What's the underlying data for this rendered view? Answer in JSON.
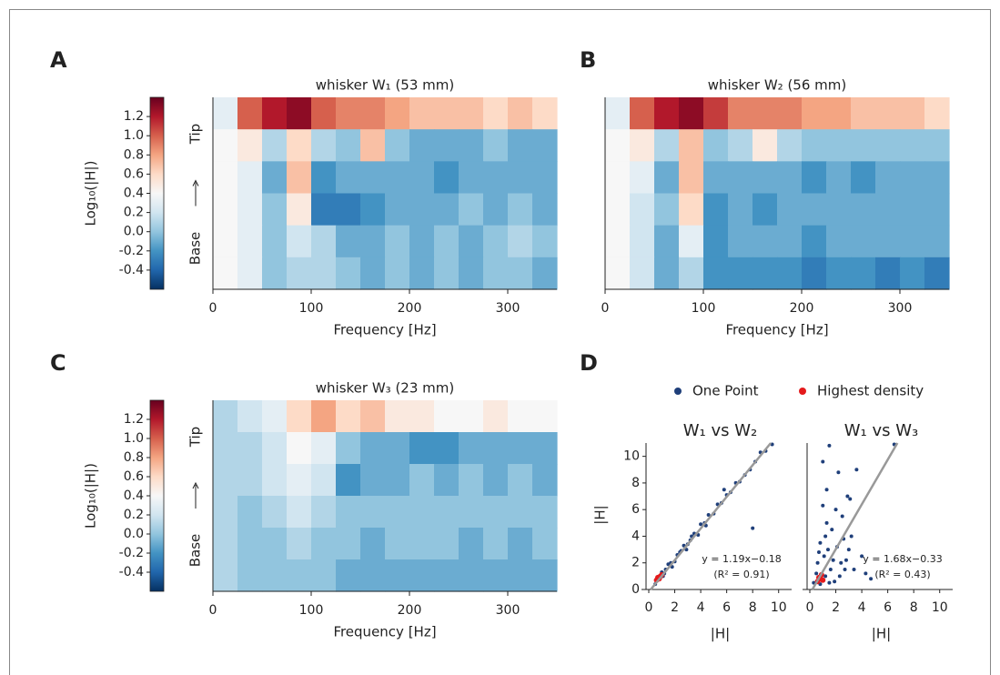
{
  "chart_data": [
    {
      "type": "heatmap",
      "panel": "A",
      "title": "whisker W₁ (53 mm)",
      "xlabel": "Frequency [Hz]",
      "colorbar_label": "Log₁₀(|H|)",
      "tip_label": "Tip",
      "base_label": "Base",
      "xlim": [
        0,
        350
      ],
      "xticks": [
        0,
        100,
        200,
        300
      ],
      "clim": [
        -0.6,
        1.4
      ],
      "cticks": [
        1.2,
        {
          "value": 1,
          "label": "1.0"
        },
        0.8,
        0.6,
        0.4,
        0.2,
        {
          "value": 0,
          "label": "0.0"
        },
        -0.2,
        -0.4
      ],
      "colormap": [
        "#053061",
        "#2166ac",
        "#4393c3",
        "#92c5de",
        "#d1e5f0",
        "#f7f7f7",
        "#fddbc7",
        "#f4a582",
        "#d6604d",
        "#b2182b",
        "#67001f"
      ],
      "xbins": [
        0,
        25,
        50,
        75,
        100,
        125,
        150,
        175,
        200,
        225,
        250,
        275,
        300,
        325,
        350
      ],
      "z": [
        [
          0.3,
          1.0,
          1.2,
          1.3,
          1.0,
          0.9,
          0.9,
          0.8,
          0.7,
          0.7,
          0.7,
          0.6,
          0.7,
          0.6
        ],
        [
          0.4,
          0.5,
          0.1,
          0.6,
          0.1,
          0.0,
          0.7,
          0.0,
          -0.1,
          -0.1,
          -0.1,
          0.0,
          -0.1,
          -0.1
        ],
        [
          0.4,
          0.3,
          -0.1,
          0.7,
          -0.2,
          -0.1,
          -0.1,
          -0.1,
          -0.1,
          -0.2,
          -0.1,
          -0.1,
          -0.1,
          -0.1
        ],
        [
          0.4,
          0.3,
          0.0,
          0.5,
          -0.3,
          -0.3,
          -0.2,
          -0.1,
          -0.1,
          -0.1,
          0.0,
          -0.1,
          0.0,
          -0.1
        ],
        [
          0.4,
          0.3,
          0.0,
          0.2,
          0.1,
          -0.1,
          -0.1,
          0.0,
          -0.1,
          0.0,
          -0.1,
          0.0,
          0.1,
          0.0
        ],
        [
          0.4,
          0.3,
          0.0,
          0.1,
          0.1,
          0.0,
          -0.1,
          0.0,
          -0.1,
          0.0,
          -0.1,
          0.0,
          0.0,
          -0.1
        ]
      ]
    },
    {
      "type": "heatmap",
      "panel": "B",
      "title": "whisker W₂ (56 mm)",
      "xlabel": "Frequency [Hz]",
      "xlim": [
        0,
        350
      ],
      "xticks": [
        0,
        100,
        200,
        300
      ],
      "clim": [
        -0.6,
        1.4
      ],
      "colormap": [
        "#053061",
        "#2166ac",
        "#4393c3",
        "#92c5de",
        "#d1e5f0",
        "#f7f7f7",
        "#fddbc7",
        "#f4a582",
        "#d6604d",
        "#b2182b",
        "#67001f"
      ],
      "xbins": [
        0,
        25,
        50,
        75,
        100,
        125,
        150,
        175,
        200,
        225,
        250,
        275,
        300,
        325,
        350
      ],
      "z": [
        [
          0.3,
          1.0,
          1.2,
          1.3,
          1.1,
          0.9,
          0.9,
          0.9,
          0.8,
          0.8,
          0.7,
          0.7,
          0.7,
          0.6
        ],
        [
          0.4,
          0.5,
          0.1,
          0.7,
          0.0,
          0.1,
          0.5,
          0.1,
          0.0,
          0.0,
          0.0,
          0.0,
          0.0,
          0.0
        ],
        [
          0.4,
          0.3,
          -0.1,
          0.7,
          -0.1,
          -0.1,
          -0.1,
          -0.1,
          -0.2,
          -0.1,
          -0.2,
          -0.1,
          -0.1,
          -0.1
        ],
        [
          0.4,
          0.2,
          0.0,
          0.6,
          -0.2,
          -0.1,
          -0.2,
          -0.1,
          -0.1,
          -0.1,
          -0.1,
          -0.1,
          -0.1,
          -0.1
        ],
        [
          0.4,
          0.2,
          -0.1,
          0.3,
          -0.2,
          -0.1,
          -0.1,
          -0.1,
          -0.2,
          -0.1,
          -0.1,
          -0.1,
          -0.1,
          -0.1
        ],
        [
          0.4,
          0.2,
          -0.1,
          0.1,
          -0.2,
          -0.2,
          -0.2,
          -0.2,
          -0.3,
          -0.2,
          -0.2,
          -0.3,
          -0.2,
          -0.3
        ]
      ]
    },
    {
      "type": "heatmap",
      "panel": "C",
      "title": "whisker W₃ (23 mm)",
      "xlabel": "Frequency [Hz]",
      "colorbar_label": "Log₁₀(|H|)",
      "tip_label": "Tip",
      "base_label": "Base",
      "xlim": [
        0,
        350
      ],
      "xticks": [
        0,
        100,
        200,
        300
      ],
      "clim": [
        -0.6,
        1.4
      ],
      "cticks": [
        1.2,
        {
          "value": 1,
          "label": "1.0"
        },
        0.8,
        0.6,
        0.4,
        0.2,
        {
          "value": 0,
          "label": "0.0"
        },
        -0.2,
        -0.4
      ],
      "colormap": [
        "#053061",
        "#2166ac",
        "#4393c3",
        "#92c5de",
        "#d1e5f0",
        "#f7f7f7",
        "#fddbc7",
        "#f4a582",
        "#d6604d",
        "#b2182b",
        "#67001f"
      ],
      "xbins": [
        0,
        25,
        50,
        75,
        100,
        125,
        150,
        175,
        200,
        225,
        250,
        275,
        300,
        325,
        350
      ],
      "z": [
        [
          0.1,
          0.2,
          0.3,
          0.6,
          0.8,
          0.6,
          0.7,
          0.5,
          0.5,
          0.4,
          0.4,
          0.5,
          0.4,
          0.4
        ],
        [
          0.1,
          0.1,
          0.2,
          0.4,
          0.3,
          0.0,
          -0.1,
          -0.1,
          -0.2,
          -0.2,
          -0.1,
          -0.1,
          -0.1,
          -0.1
        ],
        [
          0.1,
          0.1,
          0.2,
          0.3,
          0.2,
          -0.2,
          -0.1,
          -0.1,
          0.0,
          -0.1,
          0.0,
          -0.1,
          0.0,
          -0.1
        ],
        [
          0.1,
          0.0,
          0.1,
          0.2,
          0.1,
          0.0,
          0.0,
          0.0,
          0.0,
          0.0,
          0.0,
          0.0,
          0.0,
          0.0
        ],
        [
          0.1,
          0.0,
          0.0,
          0.1,
          0.0,
          0.0,
          -0.1,
          0.0,
          0.0,
          0.0,
          -0.1,
          0.0,
          -0.1,
          0.0
        ],
        [
          0.1,
          0.0,
          0.0,
          0.0,
          0.0,
          -0.1,
          -0.1,
          -0.1,
          -0.1,
          -0.1,
          -0.1,
          -0.1,
          -0.1,
          -0.1
        ]
      ]
    },
    {
      "type": "scatter",
      "panel": "D",
      "ylabel": "|H|",
      "legend": [
        {
          "name": "One Point",
          "color": "#1f3f7a"
        },
        {
          "name": "Highest density",
          "color": "#e41a1c"
        }
      ],
      "fit_color": "#999999",
      "panels": [
        {
          "title": "W₁ vs W₂",
          "xlabel": "|H|",
          "xlim": [
            0,
            11
          ],
          "ylim": [
            0,
            11
          ],
          "xticks": [
            0,
            2,
            4,
            6,
            8,
            10
          ],
          "yticks": [
            0,
            2,
            4,
            6,
            8,
            10
          ],
          "fit": {
            "slope": 1.19,
            "intercept": -0.18,
            "label": "y = 1.19x−0.18",
            "r2_label": "(R² = 0.91)"
          },
          "points": [
            {
              "x": [
                0.5,
                0.8,
                1.0,
                1.2,
                1.5,
                1.7,
                2.0,
                2.2,
                2.5,
                2.7,
                3.0,
                3.2,
                3.5,
                3.8,
                4.0,
                4.3,
                4.6,
                5.0,
                5.3,
                5.6,
                6.0,
                6.3,
                6.7,
                7.0,
                7.4,
                7.8,
                8.2,
                8.6,
                9.0,
                9.5,
                1.3,
                1.8,
                2.4,
                2.9,
                3.3,
                0.6,
                1.1,
                8.0,
                4.4,
                5.8
              ],
              "y": [
                0.4,
                0.9,
                1.3,
                1.2,
                1.9,
                2.0,
                2.1,
                2.6,
                2.9,
                3.3,
                3.4,
                3.7,
                4.2,
                4.1,
                4.9,
                5.0,
                5.6,
                5.7,
                6.4,
                6.5,
                7.1,
                7.3,
                8.0,
                8.1,
                8.6,
                9.0,
                9.6,
                10.3,
                10.4,
                10.9,
                1.5,
                1.7,
                2.8,
                3.0,
                4.0,
                0.7,
                1.0,
                4.6,
                4.8,
                7.5
              ]
            },
            {
              "x": [
                0.6,
                0.7,
                0.8,
                0.9,
                1.0
              ],
              "y": [
                0.7,
                0.9,
                0.8,
                1.0,
                1.1
              ]
            }
          ]
        },
        {
          "title": "W₁ vs W₃",
          "xlabel": "|H|",
          "xlim": [
            0,
            11
          ],
          "ylim": [
            0,
            11
          ],
          "xticks": [
            0,
            2,
            4,
            6,
            8,
            10
          ],
          "fit": {
            "slope": 1.68,
            "intercept": -0.33,
            "label": "y = 1.68x−0.33",
            "r2_label": "(R² = 0.43)"
          },
          "points": [
            {
              "x": [
                0.3,
                0.5,
                0.6,
                0.8,
                0.9,
                1.0,
                1.1,
                1.2,
                1.3,
                1.4,
                1.5,
                1.6,
                1.7,
                1.8,
                2.0,
                2.1,
                2.2,
                2.4,
                2.5,
                2.7,
                2.9,
                3.0,
                3.2,
                3.4,
                3.6,
                4.0,
                4.3,
                4.7,
                1.0,
                1.3,
                1.5,
                0.8,
                2.3,
                2.6,
                3.1,
                0.7,
                1.9,
                2.8,
                6.5,
                1.2
              ],
              "y": [
                0.5,
                1.2,
                2.0,
                3.5,
                0.8,
                6.3,
                2.5,
                1.0,
                7.5,
                3.0,
                10.8,
                1.5,
                4.5,
                2.2,
                6.0,
                3.2,
                8.8,
                2.0,
                5.5,
                1.5,
                7.0,
                3.0,
                4.0,
                1.5,
                9.0,
                2.5,
                1.2,
                0.8,
                9.6,
                5.0,
                0.5,
                0.4,
                1.0,
                3.8,
                6.8,
                2.8,
                0.6,
                2.2,
                10.9,
                4.0
              ]
            },
            {
              "x": [
                0.6,
                0.7,
                0.8,
                0.9,
                1.0
              ],
              "y": [
                0.6,
                0.9,
                0.8,
                1.1,
                0.7
              ]
            }
          ]
        }
      ]
    }
  ]
}
